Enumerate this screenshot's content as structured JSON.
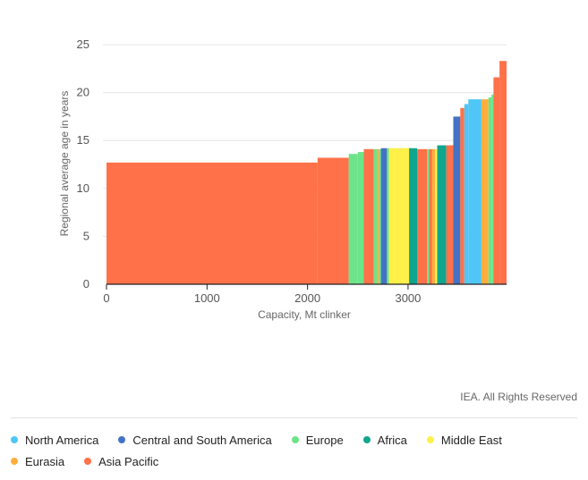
{
  "chart_data": {
    "type": "bar",
    "subtype": "variable-width step bars (capacity vs regional average age)",
    "title": "",
    "xlabel": "Capacity, Mt clinker",
    "ylabel": "Regional average age in years",
    "xlim": [
      0,
      3980
    ],
    "ylim": [
      0,
      25
    ],
    "x_ticks": [
      "0",
      "1000",
      "2000",
      "3000"
    ],
    "x_tick_values": [
      0,
      1000,
      2000,
      3000
    ],
    "y_ticks": [
      "0",
      "5",
      "10",
      "15",
      "20",
      "25"
    ],
    "y_tick_values": [
      0,
      5,
      10,
      15,
      20,
      25
    ],
    "grid": true,
    "series": [
      {
        "name": "North America",
        "color": "#4fc6f5"
      },
      {
        "name": "Central and South America",
        "color": "#4472c4"
      },
      {
        "name": "Europe",
        "color": "#6de38a"
      },
      {
        "name": "Africa",
        "color": "#0fa58f"
      },
      {
        "name": "Middle East",
        "color": "#fff04a"
      },
      {
        "name": "Eurasia",
        "color": "#ffae3d"
      },
      {
        "name": "Asia Pacific",
        "color": "#ff7148"
      }
    ],
    "bars": [
      {
        "region": "Asia Pacific",
        "x0": 0,
        "x1": 2100,
        "value": 12.7
      },
      {
        "region": "Asia Pacific",
        "x0": 2100,
        "x1": 2410,
        "value": 13.2
      },
      {
        "region": "Europe",
        "x0": 2410,
        "x1": 2500,
        "value": 13.6
      },
      {
        "region": "Europe",
        "x0": 2500,
        "x1": 2560,
        "value": 13.8
      },
      {
        "region": "Asia Pacific",
        "x0": 2560,
        "x1": 2660,
        "value": 14.1
      },
      {
        "region": "Europe",
        "x0": 2660,
        "x1": 2690,
        "value": 14.1
      },
      {
        "region": "Eurasia",
        "x0": 2690,
        "x1": 2710,
        "value": 14.1
      },
      {
        "region": "Europe",
        "x0": 2710,
        "x1": 2730,
        "value": 14.1
      },
      {
        "region": "Central and South America",
        "x0": 2730,
        "x1": 2790,
        "value": 14.2
      },
      {
        "region": "Europe",
        "x0": 2790,
        "x1": 2810,
        "value": 14.2
      },
      {
        "region": "Middle East",
        "x0": 2810,
        "x1": 3010,
        "value": 14.2
      },
      {
        "region": "Africa",
        "x0": 3010,
        "x1": 3090,
        "value": 14.2
      },
      {
        "region": "Asia Pacific",
        "x0": 3090,
        "x1": 3190,
        "value": 14.1
      },
      {
        "region": "Europe",
        "x0": 3190,
        "x1": 3210,
        "value": 14.1
      },
      {
        "region": "Asia Pacific",
        "x0": 3210,
        "x1": 3240,
        "value": 14.1
      },
      {
        "region": "Eurasia",
        "x0": 3240,
        "x1": 3270,
        "value": 14.1
      },
      {
        "region": "Middle East",
        "x0": 3270,
        "x1": 3290,
        "value": 14.1
      },
      {
        "region": "Africa",
        "x0": 3290,
        "x1": 3380,
        "value": 14.5
      },
      {
        "region": "Asia Pacific",
        "x0": 3380,
        "x1": 3450,
        "value": 14.5
      },
      {
        "region": "Central and South America",
        "x0": 3450,
        "x1": 3520,
        "value": 17.5
      },
      {
        "region": "Asia Pacific",
        "x0": 3520,
        "x1": 3560,
        "value": 18.4
      },
      {
        "region": "North America",
        "x0": 3560,
        "x1": 3600,
        "value": 18.8
      },
      {
        "region": "North America",
        "x0": 3600,
        "x1": 3730,
        "value": 19.3
      },
      {
        "region": "Eurasia",
        "x0": 3730,
        "x1": 3800,
        "value": 19.3
      },
      {
        "region": "Europe",
        "x0": 3800,
        "x1": 3830,
        "value": 19.5
      },
      {
        "region": "Europe",
        "x0": 3830,
        "x1": 3850,
        "value": 19.8
      },
      {
        "region": "Asia Pacific",
        "x0": 3850,
        "x1": 3910,
        "value": 21.6
      },
      {
        "region": "Asia Pacific",
        "x0": 3910,
        "x1": 3980,
        "value": 23.3
      }
    ]
  },
  "credit": "IEA. All Rights Reserved"
}
